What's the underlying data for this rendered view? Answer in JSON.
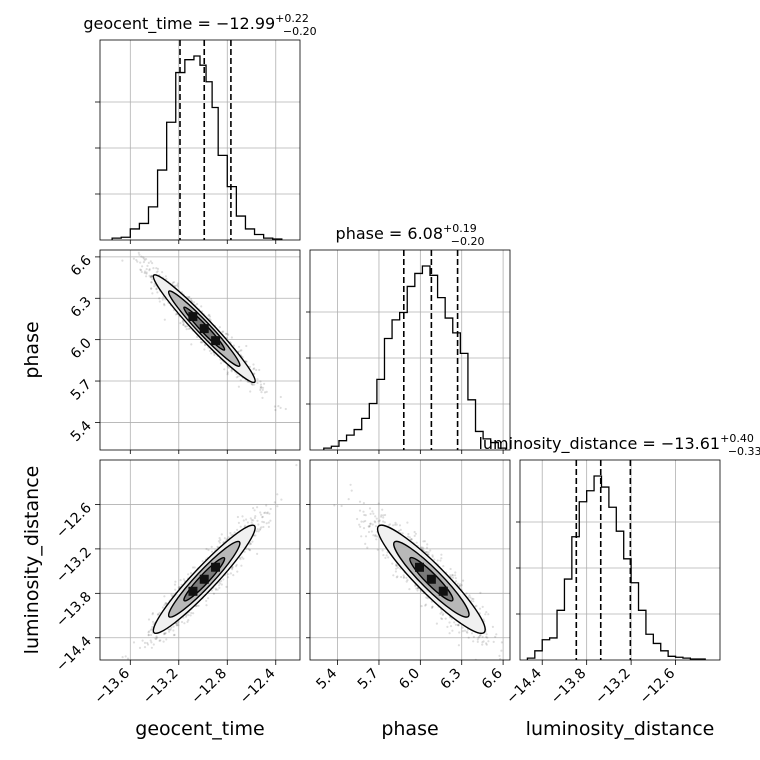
{
  "chart_data": {
    "type": "corner",
    "grid": true,
    "parameters": [
      {
        "name": "geocent_time",
        "axis_label": "geocent_time",
        "median": -12.99,
        "plus": "0.22",
        "minus": "0.20",
        "title_main": "geocent_time = −12.99",
        "title_sup": "+0.22",
        "title_sub": "−0.20",
        "range": [
          -13.85,
          -12.2
        ],
        "ticks": [
          -13.6,
          -13.2,
          -12.8,
          -12.4
        ],
        "tick_labels": [
          "−13.6",
          "−13.2",
          "−12.8",
          "−12.4"
        ],
        "quantiles": [
          -13.19,
          -12.99,
          -12.77
        ]
      },
      {
        "name": "phase",
        "axis_label": "phase",
        "median": 6.08,
        "plus": "0.19",
        "minus": "0.20",
        "title_main": "phase = 6.08",
        "title_sup": "+0.19",
        "title_sub": "−0.20",
        "range": [
          5.2,
          6.65
        ],
        "ticks": [
          5.4,
          5.7,
          6.0,
          6.3,
          6.6
        ],
        "tick_labels": [
          "5.4",
          "5.7",
          "6.0",
          "6.3",
          "6.6"
        ],
        "quantiles": [
          5.88,
          6.08,
          6.27
        ]
      },
      {
        "name": "luminosity_distance",
        "axis_label": "luminosity_distance",
        "median": -13.61,
        "plus": "0.40",
        "minus": "0.33",
        "title_main": "luminosity_distance = −13.61",
        "title_sup": "+0.40",
        "title_sub": "−0.33",
        "range": [
          -14.7,
          -12.0
        ],
        "ticks": [
          -14.4,
          -13.8,
          -13.2,
          -12.6
        ],
        "tick_labels": [
          "−14.4",
          "−13.8",
          "−13.2",
          "−12.6"
        ],
        "quantiles": [
          -13.94,
          -13.61,
          -13.21
        ]
      }
    ],
    "histograms": [
      {
        "param": "geocent_time",
        "edges": [
          -13.75,
          -13.675,
          -13.6,
          -13.525,
          -13.45,
          -13.375,
          -13.3,
          -13.225,
          -13.15,
          -13.075,
          -13.025,
          -12.975,
          -12.925,
          -12.875,
          -12.8,
          -12.725,
          -12.65,
          -12.575,
          -12.5,
          -12.425,
          -12.35
        ],
        "counts": [
          0.01,
          0.015,
          0.06,
          0.09,
          0.18,
          0.38,
          0.64,
          0.91,
          0.98,
          1.0,
          0.95,
          0.86,
          0.72,
          0.46,
          0.29,
          0.13,
          0.06,
          0.03,
          0.01,
          0.005
        ]
      },
      {
        "param": "phase",
        "edges": [
          5.3,
          5.355,
          5.41,
          5.465,
          5.52,
          5.575,
          5.63,
          5.685,
          5.74,
          5.795,
          5.85,
          5.905,
          5.96,
          6.015,
          6.07,
          6.125,
          6.18,
          6.235,
          6.29,
          6.345,
          6.4,
          6.455,
          6.51,
          6.565,
          6.62
        ],
        "counts": [
          0.01,
          0.02,
          0.05,
          0.08,
          0.11,
          0.17,
          0.25,
          0.38,
          0.6,
          0.7,
          0.74,
          0.88,
          0.95,
          0.99,
          0.94,
          0.82,
          0.71,
          0.63,
          0.52,
          0.27,
          0.1,
          0.06,
          0.04,
          0.01
        ]
      },
      {
        "param": "luminosity_distance",
        "edges": [
          -14.6,
          -14.5,
          -14.4,
          -14.3,
          -14.2,
          -14.1,
          -14.0,
          -13.9,
          -13.8,
          -13.7,
          -13.6,
          -13.5,
          -13.4,
          -13.3,
          -13.2,
          -13.1,
          -13.0,
          -12.9,
          -12.8,
          -12.7,
          -12.6,
          -12.5,
          -12.4,
          -12.3,
          -12.2
        ],
        "counts": [
          0.01,
          0.05,
          0.11,
          0.12,
          0.27,
          0.44,
          0.67,
          0.86,
          0.92,
          1.0,
          0.94,
          0.83,
          0.7,
          0.55,
          0.42,
          0.27,
          0.14,
          0.09,
          0.05,
          0.02,
          0.015,
          0.01,
          0.005,
          0.005
        ]
      }
    ],
    "correlations": [
      {
        "x": "geocent_time",
        "y": "phase",
        "rho": -0.97
      },
      {
        "x": "geocent_time",
        "y": "luminosity_distance",
        "rho": 0.95
      },
      {
        "x": "phase",
        "y": "luminosity_distance",
        "rho": -0.93
      }
    ]
  }
}
